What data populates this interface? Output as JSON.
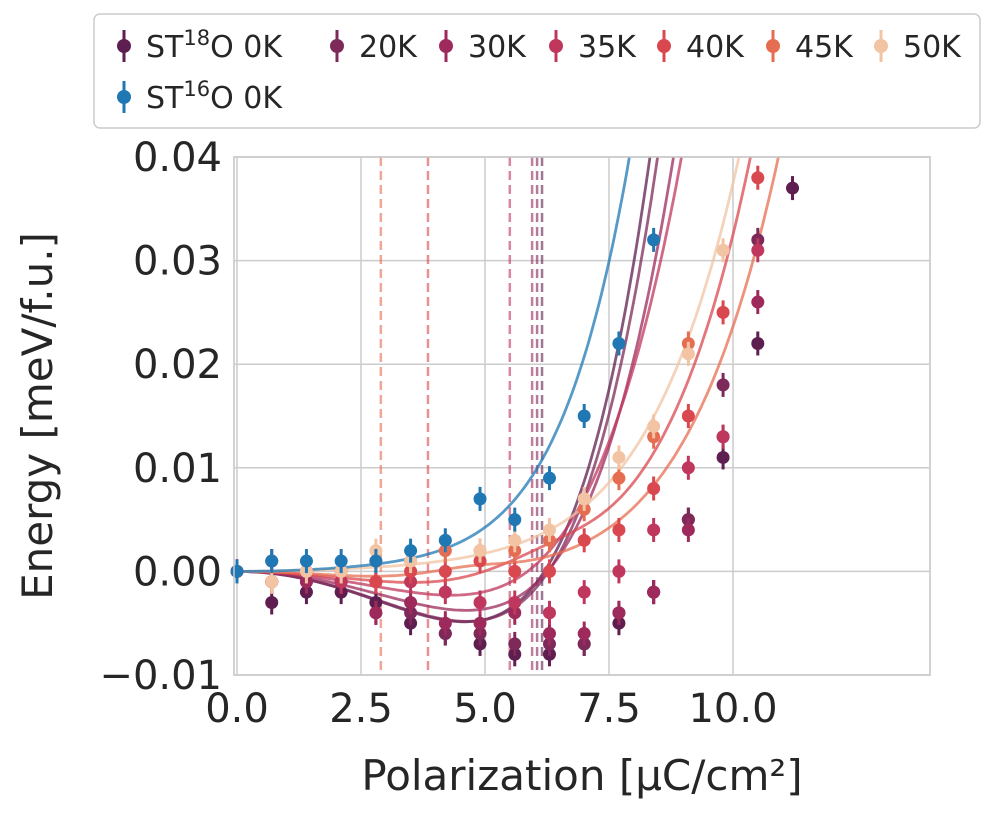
{
  "chart_data": {
    "type": "scatter",
    "xlabel": "Polarization [μC/cm²]",
    "ylabel": "Energy [meV/f.u.]",
    "xlim": [
      -0.1,
      14
    ],
    "ylim": [
      -0.01,
      0.04
    ],
    "xticks": [
      "0.0",
      "2.5",
      "5.0",
      "7.5",
      "10.0"
    ],
    "xtick_values": [
      0,
      2.5,
      5,
      7.5,
      10
    ],
    "yticks": [
      "0.04",
      "0.03",
      "0.02",
      "0.01",
      "0.00",
      "−0.01"
    ],
    "ytick_values": [
      0.04,
      0.03,
      0.02,
      0.01,
      0.0,
      -0.01
    ],
    "grid": true,
    "legend_position": "top",
    "series": [
      {
        "name": "ST18O 0K",
        "legend_base": "ST",
        "legend_sup": "18",
        "legend_tail": "O  0K",
        "color": "#5e1e4f",
        "min_x": 6.15,
        "fit": {
          "a": -0.0075,
          "m": 6.1,
          "w": 4.4
        },
        "points": [
          [
            0,
            0
          ],
          [
            0.7,
            -0.003
          ],
          [
            1.4,
            -0.002
          ],
          [
            2.1,
            -0.002
          ],
          [
            2.8,
            -0.003
          ],
          [
            3.5,
            -0.005
          ],
          [
            4.2,
            -0.006
          ],
          [
            4.9,
            -0.007
          ],
          [
            5.6,
            -0.008
          ],
          [
            6.3,
            -0.008
          ],
          [
            7.0,
            -0.007
          ],
          [
            7.7,
            -0.005
          ],
          [
            8.4,
            -0.002
          ],
          [
            9.1,
            0.005
          ],
          [
            9.8,
            0.011
          ],
          [
            10.5,
            0.022
          ],
          [
            11.2,
            0.037
          ]
        ]
      },
      {
        "name": "ST18O 20K",
        "legend_base": "",
        "legend_sup": "",
        "legend_tail": "20K",
        "color": "#7d2a5a",
        "min_x": 6.05,
        "fit": {
          "a": -0.0072,
          "m": 6.05,
          "w": 4.5
        },
        "points": [
          [
            0,
            0
          ],
          [
            0.7,
            -0.001
          ],
          [
            1.4,
            -0.001
          ],
          [
            2.1,
            -0.001
          ],
          [
            2.8,
            -0.004
          ],
          [
            3.5,
            -0.004
          ],
          [
            4.2,
            -0.006
          ],
          [
            4.9,
            -0.006
          ],
          [
            5.6,
            -0.007
          ],
          [
            6.3,
            -0.007
          ],
          [
            7.0,
            -0.007
          ],
          [
            7.7,
            -0.004
          ],
          [
            8.4,
            -0.002
          ],
          [
            9.1,
            0.005
          ],
          [
            9.8,
            0.018
          ],
          [
            10.5,
            0.032
          ]
        ]
      },
      {
        "name": "ST18O 30K",
        "legend_base": "",
        "legend_sup": "",
        "legend_tail": "30K",
        "color": "#9e2a5c",
        "min_x": 5.95,
        "fit": {
          "a": -0.0055,
          "m": 5.95,
          "w": 4.7
        },
        "points": [
          [
            0,
            0
          ],
          [
            0.7,
            -0.001
          ],
          [
            1.4,
            -0.001
          ],
          [
            2.1,
            -0.001
          ],
          [
            2.8,
            -0.004
          ],
          [
            3.5,
            -0.003
          ],
          [
            4.2,
            -0.005
          ],
          [
            4.9,
            -0.005
          ],
          [
            5.6,
            -0.004
          ],
          [
            6.3,
            -0.006
          ],
          [
            7.0,
            -0.006
          ],
          [
            7.7,
            -0.004
          ],
          [
            8.4,
            -0.002
          ],
          [
            9.1,
            0.004
          ],
          [
            9.8,
            0.013
          ],
          [
            10.5,
            0.026
          ]
        ]
      },
      {
        "name": "ST18O 35K",
        "legend_base": "",
        "legend_sup": "",
        "legend_tail": "35K",
        "color": "#c0375e",
        "min_x": 5.5,
        "fit": {
          "a": -0.0033,
          "m": 5.5,
          "w": 4.8
        },
        "points": [
          [
            0,
            0
          ],
          [
            0.7,
            0.001
          ],
          [
            1.4,
            0
          ],
          [
            2.1,
            -0.001
          ],
          [
            2.8,
            -0.001
          ],
          [
            3.5,
            -0.001
          ],
          [
            4.2,
            -0.002
          ],
          [
            4.9,
            -0.003
          ],
          [
            5.6,
            -0.003
          ],
          [
            6.3,
            -0.004
          ],
          [
            7.0,
            -0.002
          ],
          [
            7.7,
            0
          ],
          [
            8.4,
            0.004
          ],
          [
            9.1,
            0.01
          ],
          [
            9.8,
            0.013
          ],
          [
            10.5,
            0.031
          ]
        ]
      },
      {
        "name": "ST18O 40K",
        "legend_base": "",
        "legend_sup": "",
        "legend_tail": "40K",
        "color": "#d9474f",
        "min_x": 3.85,
        "fit": {
          "a": -0.0012,
          "m": 3.85,
          "w": 5.5
        },
        "points": [
          [
            0,
            0
          ],
          [
            0.7,
            -0.001
          ],
          [
            1.4,
            0
          ],
          [
            2.1,
            0
          ],
          [
            2.8,
            -0.001
          ],
          [
            3.5,
            0
          ],
          [
            4.2,
            0
          ],
          [
            4.9,
            0.001
          ],
          [
            5.6,
            0
          ],
          [
            6.3,
            0
          ],
          [
            7.0,
            0.003
          ],
          [
            7.7,
            0.004
          ],
          [
            8.4,
            0.008
          ],
          [
            9.1,
            0.015
          ],
          [
            9.8,
            0.025
          ],
          [
            10.5,
            0.038
          ]
        ]
      },
      {
        "name": "ST18O 45K",
        "legend_base": "",
        "legend_sup": "",
        "legend_tail": "45K",
        "color": "#e56e52",
        "min_x": 2.9,
        "fit": {
          "a": -0.0005,
          "m": 2.9,
          "w": 5.8
        },
        "points": [
          [
            0,
            0
          ],
          [
            0.7,
            -0.001
          ],
          [
            1.4,
            0
          ],
          [
            2.1,
            0
          ],
          [
            2.8,
            0.001
          ],
          [
            3.5,
            0.001
          ],
          [
            4.2,
            0.002
          ],
          [
            4.9,
            0.002
          ],
          [
            5.6,
            0.002
          ],
          [
            6.3,
            0.003
          ],
          [
            7.0,
            0.006
          ],
          [
            7.7,
            0.009
          ],
          [
            8.4,
            0.013
          ],
          [
            9.1,
            0.022
          ]
        ]
      },
      {
        "name": "ST18O 50K",
        "legend_base": "",
        "legend_sup": "",
        "legend_tail": "50K",
        "color": "#f2c4a3",
        "min_x": null,
        "fit": {
          "a": 0,
          "m": 0,
          "w": 5.5
        },
        "points": [
          [
            0,
            0
          ],
          [
            0.7,
            -0.001
          ],
          [
            1.4,
            0
          ],
          [
            2.1,
            0
          ],
          [
            2.8,
            0.002
          ],
          [
            3.5,
            0.001
          ],
          [
            4.2,
            0.003
          ],
          [
            4.9,
            0.002
          ],
          [
            5.6,
            0.003
          ],
          [
            6.3,
            0.004
          ],
          [
            7.0,
            0.007
          ],
          [
            7.7,
            0.011
          ],
          [
            8.4,
            0.014
          ],
          [
            9.1,
            0.021
          ],
          [
            9.8,
            0.031
          ]
        ]
      },
      {
        "name": "ST16O 0K",
        "legend_base": "ST",
        "legend_sup": "16",
        "legend_tail": "O  0K",
        "color": "#1f77b4",
        "min_x": null,
        "fit": {
          "a": 0,
          "m": 0,
          "w": 4.3
        },
        "points": [
          [
            0,
            0
          ],
          [
            0.7,
            0.001
          ],
          [
            1.4,
            0.001
          ],
          [
            2.1,
            0.001
          ],
          [
            2.8,
            0.001
          ],
          [
            3.5,
            0.002
          ],
          [
            4.2,
            0.003
          ],
          [
            4.9,
            0.007
          ],
          [
            5.6,
            0.005
          ],
          [
            6.3,
            0.009
          ],
          [
            7.0,
            0.015
          ],
          [
            7.7,
            0.022
          ],
          [
            8.4,
            0.032
          ]
        ]
      }
    ]
  }
}
